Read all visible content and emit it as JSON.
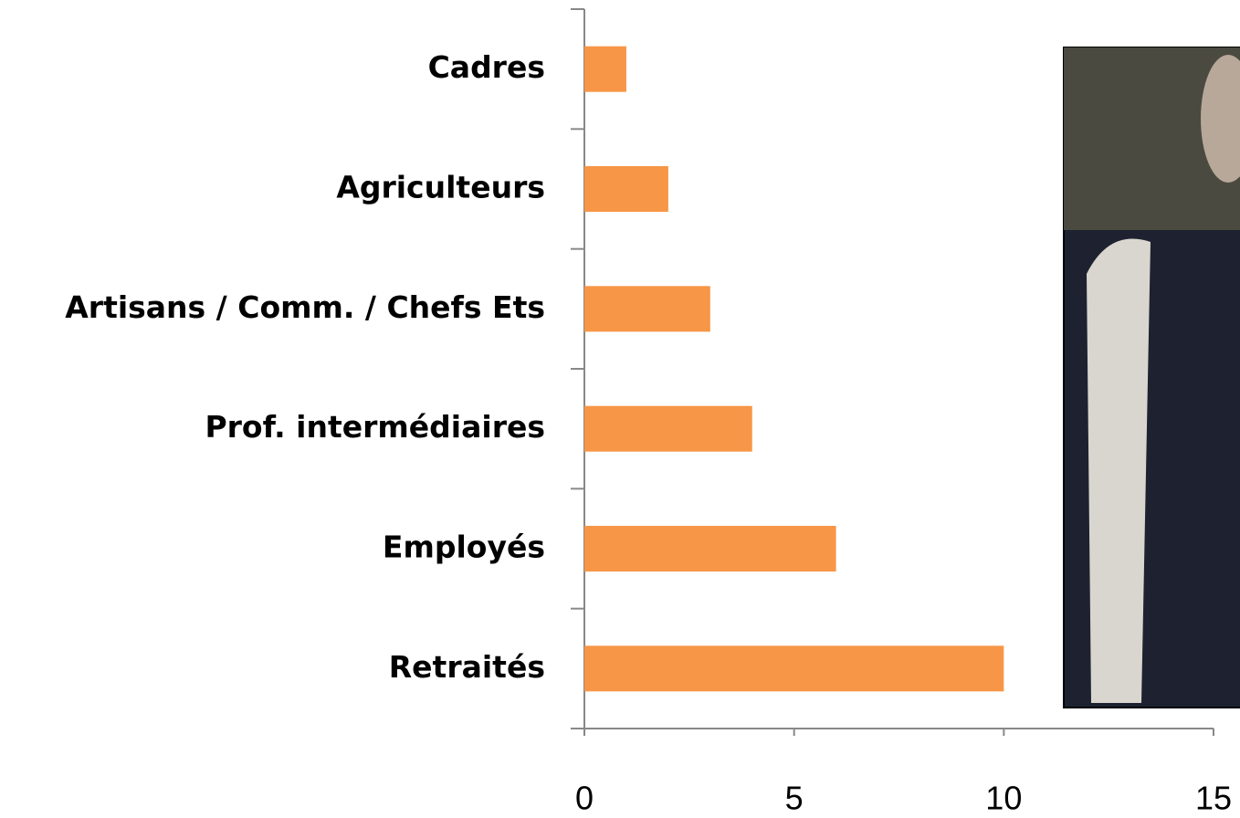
{
  "chart_data": {
    "type": "barh",
    "categories": [
      "Cadres",
      "Agriculteurs",
      "Artisans / Comm. / Chefs Ets",
      "Prof. intermédiaires",
      "Employés",
      "Retraités"
    ],
    "values": [
      1,
      2,
      3,
      4,
      6,
      10
    ],
    "color": "#f79646",
    "xlim": [
      0,
      15
    ],
    "xticks": [
      0,
      5,
      10,
      15
    ],
    "grid": false
  }
}
